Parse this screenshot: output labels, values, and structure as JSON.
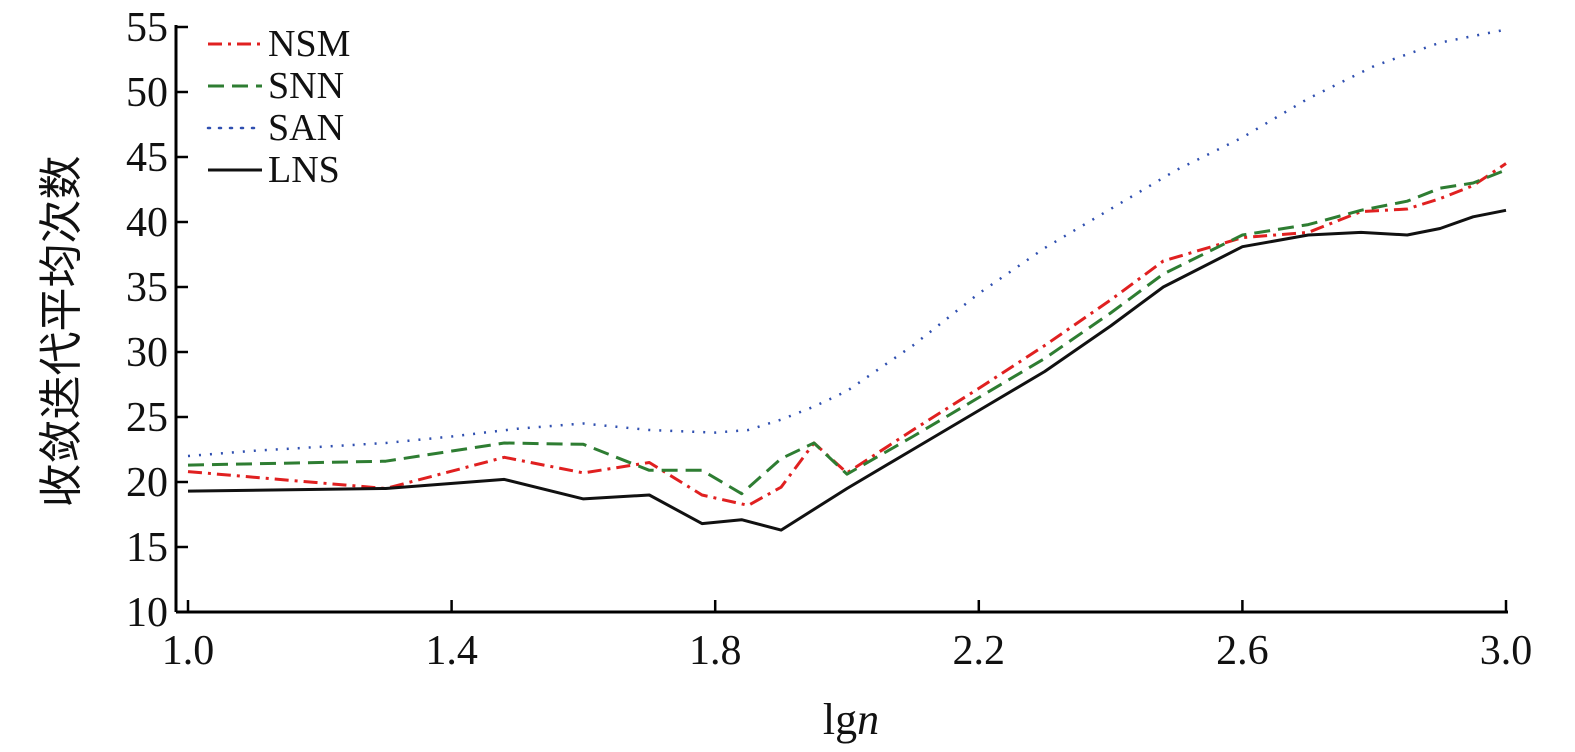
{
  "chart_data": {
    "type": "line",
    "xlabel_main": "lg",
    "xlabel_var": "n",
    "ylabel": "收敛迭代平均次数",
    "xlim": [
      1.0,
      3.0
    ],
    "ylim": [
      10,
      55
    ],
    "xticks": [
      1.0,
      1.4,
      1.8,
      2.2,
      2.6,
      3.0
    ],
    "xtick_labels": [
      "1.0",
      "1.4",
      "1.8",
      "2.2",
      "2.6",
      "3.0"
    ],
    "yticks": [
      10,
      15,
      20,
      25,
      30,
      35,
      40,
      45,
      50,
      55
    ],
    "ytick_labels": [
      "10",
      "15",
      "20",
      "25",
      "30",
      "35",
      "40",
      "45",
      "50",
      "55"
    ],
    "grid": false,
    "legend_position": "top-left",
    "series": [
      {
        "name": "NSM",
        "color": "#e02020",
        "style": "dashdot",
        "x": [
          1.0,
          1.3,
          1.48,
          1.6,
          1.7,
          1.78,
          1.85,
          1.9,
          1.95,
          2.0,
          2.1,
          2.2,
          2.3,
          2.4,
          2.48,
          2.6,
          2.7,
          2.78,
          2.85,
          2.9,
          2.95,
          3.0
        ],
        "y": [
          20.8,
          19.5,
          21.9,
          20.7,
          21.5,
          19.0,
          18.2,
          19.6,
          23.0,
          20.7,
          24.0,
          27.2,
          30.5,
          34.0,
          37.0,
          38.8,
          39.2,
          40.8,
          41.0,
          41.8,
          42.8,
          44.5
        ]
      },
      {
        "name": "SNN",
        "color": "#2e7d32",
        "style": "dashed",
        "x": [
          1.0,
          1.3,
          1.48,
          1.6,
          1.7,
          1.78,
          1.84,
          1.9,
          1.95,
          2.0,
          2.1,
          2.2,
          2.3,
          2.4,
          2.48,
          2.6,
          2.7,
          2.78,
          2.85,
          2.9,
          2.95,
          3.0
        ],
        "y": [
          21.3,
          21.6,
          23.0,
          22.9,
          20.9,
          20.9,
          19.1,
          21.8,
          23.0,
          20.6,
          23.5,
          26.5,
          29.5,
          33.0,
          36.0,
          39.0,
          39.8,
          40.9,
          41.6,
          42.6,
          43.0,
          44.0
        ]
      },
      {
        "name": "SAN",
        "color": "#2f4fb0",
        "style": "dotted",
        "x": [
          1.0,
          1.1,
          1.2,
          1.3,
          1.4,
          1.5,
          1.6,
          1.7,
          1.8,
          1.85,
          1.9,
          1.95,
          2.0,
          2.1,
          2.2,
          2.3,
          2.4,
          2.5,
          2.6,
          2.7,
          2.8,
          2.9,
          3.0
        ],
        "y": [
          22.0,
          22.4,
          22.7,
          23.0,
          23.5,
          24.1,
          24.5,
          24.0,
          23.8,
          24.0,
          24.8,
          25.8,
          27.0,
          30.5,
          34.5,
          38.0,
          41.0,
          44.0,
          46.5,
          49.5,
          52.0,
          53.8,
          54.8
        ]
      },
      {
        "name": "LNS",
        "color": "#111111",
        "style": "solid",
        "x": [
          1.0,
          1.3,
          1.48,
          1.6,
          1.7,
          1.78,
          1.84,
          1.9,
          2.0,
          2.1,
          2.2,
          2.3,
          2.4,
          2.48,
          2.6,
          2.7,
          2.78,
          2.85,
          2.9,
          2.95,
          3.0
        ],
        "y": [
          19.3,
          19.5,
          20.2,
          18.7,
          19.0,
          16.8,
          17.1,
          16.3,
          19.5,
          22.5,
          25.5,
          28.5,
          32.0,
          35.0,
          38.1,
          39.0,
          39.2,
          39.0,
          39.5,
          40.4,
          40.9
        ]
      }
    ]
  }
}
